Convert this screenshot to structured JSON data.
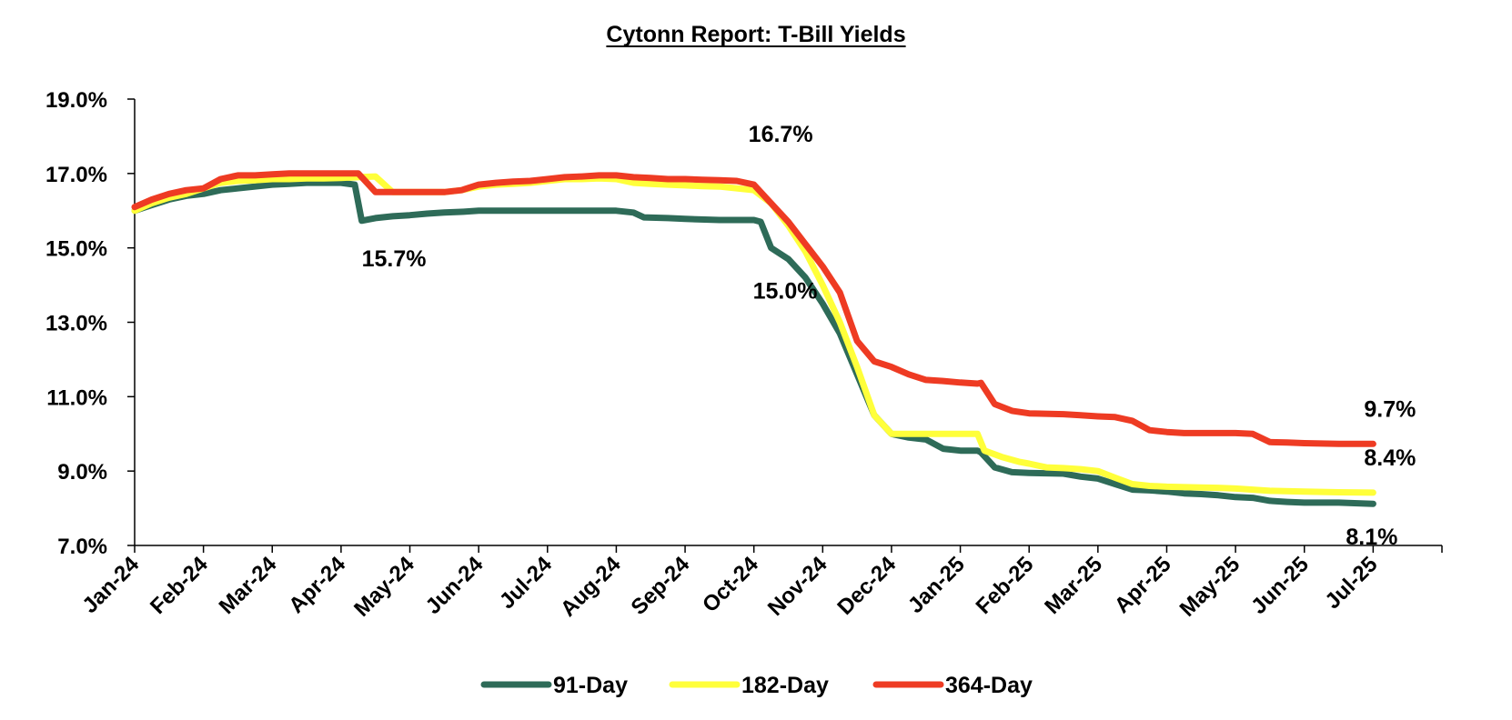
{
  "chart_data": {
    "type": "line",
    "title": "Cytonn Report: T-Bill Yields",
    "xlabel": "",
    "ylabel": "",
    "ylim": [
      7.0,
      19.0
    ],
    "y_ticks": [
      "7.0%",
      "9.0%",
      "11.0%",
      "13.0%",
      "15.0%",
      "17.0%",
      "19.0%"
    ],
    "x_range": [
      0,
      19
    ],
    "x_ticks": [
      {
        "x": 0,
        "label": "Jan-24"
      },
      {
        "x": 1,
        "label": "Feb-24"
      },
      {
        "x": 2,
        "label": "Mar-24"
      },
      {
        "x": 3,
        "label": "Apr-24"
      },
      {
        "x": 4,
        "label": "May-24"
      },
      {
        "x": 5,
        "label": "Jun-24"
      },
      {
        "x": 6,
        "label": "Jul-24"
      },
      {
        "x": 7,
        "label": "Aug-24"
      },
      {
        "x": 8,
        "label": "Sep-24"
      },
      {
        "x": 9,
        "label": "Oct-24"
      },
      {
        "x": 10,
        "label": "Nov-24"
      },
      {
        "x": 11,
        "label": "Dec-24"
      },
      {
        "x": 12,
        "label": "Jan-25"
      },
      {
        "x": 13,
        "label": "Feb-25"
      },
      {
        "x": 14,
        "label": "Mar-25"
      },
      {
        "x": 15,
        "label": "Apr-25"
      },
      {
        "x": 16,
        "label": "May-25"
      },
      {
        "x": 17,
        "label": "Jun-25"
      },
      {
        "x": 18,
        "label": "Jul-25"
      }
    ],
    "legend_position": "bottom",
    "grid": false,
    "series": [
      {
        "name": "91-Day",
        "color": "#2e6b58",
        "points": [
          [
            0,
            16.0
          ],
          [
            0.25,
            16.15
          ],
          [
            0.5,
            16.3
          ],
          [
            0.75,
            16.4
          ],
          [
            1.0,
            16.45
          ],
          [
            1.25,
            16.55
          ],
          [
            1.5,
            16.6
          ],
          [
            1.75,
            16.65
          ],
          [
            2.0,
            16.7
          ],
          [
            2.25,
            16.72
          ],
          [
            2.5,
            16.75
          ],
          [
            2.75,
            16.75
          ],
          [
            3.0,
            16.75
          ],
          [
            3.2,
            16.7
          ],
          [
            3.3,
            15.73
          ],
          [
            3.5,
            15.8
          ],
          [
            3.75,
            15.85
          ],
          [
            4.0,
            15.88
          ],
          [
            4.25,
            15.92
          ],
          [
            4.5,
            15.95
          ],
          [
            4.75,
            15.97
          ],
          [
            5.0,
            16.0
          ],
          [
            5.5,
            16.0
          ],
          [
            6.0,
            16.0
          ],
          [
            6.5,
            16.0
          ],
          [
            7.0,
            16.0
          ],
          [
            7.25,
            15.95
          ],
          [
            7.4,
            15.82
          ],
          [
            7.75,
            15.8
          ],
          [
            8.0,
            15.78
          ],
          [
            8.5,
            15.75
          ],
          [
            9.0,
            15.75
          ],
          [
            9.1,
            15.7
          ],
          [
            9.25,
            15.0
          ],
          [
            9.5,
            14.7
          ],
          [
            9.75,
            14.2
          ],
          [
            10.0,
            13.5
          ],
          [
            10.25,
            12.7
          ],
          [
            10.5,
            11.6
          ],
          [
            10.75,
            10.5
          ],
          [
            11.0,
            10.0
          ],
          [
            11.25,
            9.9
          ],
          [
            11.5,
            9.85
          ],
          [
            11.75,
            9.6
          ],
          [
            12.0,
            9.55
          ],
          [
            12.25,
            9.55
          ],
          [
            12.3,
            9.5
          ],
          [
            12.5,
            9.1
          ],
          [
            12.75,
            8.97
          ],
          [
            13.0,
            8.95
          ],
          [
            13.5,
            8.93
          ],
          [
            13.75,
            8.85
          ],
          [
            14.0,
            8.8
          ],
          [
            14.25,
            8.65
          ],
          [
            14.5,
            8.5
          ],
          [
            14.75,
            8.48
          ],
          [
            15.0,
            8.45
          ],
          [
            15.25,
            8.4
          ],
          [
            15.5,
            8.38
          ],
          [
            15.75,
            8.35
          ],
          [
            16.0,
            8.3
          ],
          [
            16.25,
            8.28
          ],
          [
            16.5,
            8.2
          ],
          [
            16.75,
            8.17
          ],
          [
            17.0,
            8.15
          ],
          [
            17.5,
            8.15
          ],
          [
            18.0,
            8.12
          ]
        ]
      },
      {
        "name": "182-Day",
        "color": "#ffff3a",
        "points": [
          [
            0,
            16.0
          ],
          [
            0.25,
            16.2
          ],
          [
            0.5,
            16.35
          ],
          [
            0.75,
            16.45
          ],
          [
            1.0,
            16.6
          ],
          [
            1.25,
            16.75
          ],
          [
            1.5,
            16.8
          ],
          [
            1.75,
            16.82
          ],
          [
            2.0,
            16.85
          ],
          [
            2.25,
            16.85
          ],
          [
            2.5,
            16.87
          ],
          [
            2.75,
            16.87
          ],
          [
            3.0,
            16.88
          ],
          [
            3.25,
            16.9
          ],
          [
            3.5,
            16.92
          ],
          [
            3.75,
            16.5
          ],
          [
            4.0,
            16.5
          ],
          [
            4.25,
            16.5
          ],
          [
            4.5,
            16.5
          ],
          [
            4.75,
            16.55
          ],
          [
            5.0,
            16.65
          ],
          [
            5.25,
            16.7
          ],
          [
            5.5,
            16.72
          ],
          [
            5.75,
            16.75
          ],
          [
            6.0,
            16.8
          ],
          [
            6.25,
            16.85
          ],
          [
            6.5,
            16.85
          ],
          [
            6.75,
            16.87
          ],
          [
            7.0,
            16.85
          ],
          [
            7.25,
            16.75
          ],
          [
            7.5,
            16.72
          ],
          [
            7.75,
            16.7
          ],
          [
            8.0,
            16.68
          ],
          [
            8.25,
            16.66
          ],
          [
            8.5,
            16.65
          ],
          [
            8.75,
            16.6
          ],
          [
            9.0,
            16.55
          ],
          [
            9.25,
            16.2
          ],
          [
            9.5,
            15.6
          ],
          [
            9.75,
            14.9
          ],
          [
            10.0,
            14.0
          ],
          [
            10.25,
            13.0
          ],
          [
            10.5,
            11.8
          ],
          [
            10.75,
            10.5
          ],
          [
            11.0,
            10.0
          ],
          [
            11.5,
            10.0
          ],
          [
            12.0,
            10.0
          ],
          [
            12.25,
            10.0
          ],
          [
            12.35,
            9.55
          ],
          [
            12.6,
            9.38
          ],
          [
            12.85,
            9.25
          ],
          [
            13.0,
            9.2
          ],
          [
            13.25,
            9.1
          ],
          [
            13.5,
            9.08
          ],
          [
            13.75,
            9.05
          ],
          [
            14.0,
            9.0
          ],
          [
            14.25,
            8.82
          ],
          [
            14.5,
            8.65
          ],
          [
            14.75,
            8.6
          ],
          [
            15.0,
            8.58
          ],
          [
            15.5,
            8.56
          ],
          [
            15.75,
            8.55
          ],
          [
            16.0,
            8.53
          ],
          [
            16.25,
            8.5
          ],
          [
            16.5,
            8.47
          ],
          [
            17.0,
            8.45
          ],
          [
            17.5,
            8.43
          ],
          [
            18.0,
            8.42
          ]
        ]
      },
      {
        "name": "364-Day",
        "color": "#ee3b23",
        "points": [
          [
            0,
            16.1
          ],
          [
            0.25,
            16.3
          ],
          [
            0.5,
            16.45
          ],
          [
            0.75,
            16.55
          ],
          [
            1.0,
            16.6
          ],
          [
            1.25,
            16.85
          ],
          [
            1.5,
            16.95
          ],
          [
            1.75,
            16.95
          ],
          [
            2.0,
            16.98
          ],
          [
            2.25,
            17.0
          ],
          [
            2.5,
            17.0
          ],
          [
            2.75,
            17.0
          ],
          [
            3.0,
            17.0
          ],
          [
            3.25,
            17.0
          ],
          [
            3.5,
            16.5
          ],
          [
            3.75,
            16.5
          ],
          [
            4.0,
            16.5
          ],
          [
            4.25,
            16.5
          ],
          [
            4.5,
            16.5
          ],
          [
            4.75,
            16.55
          ],
          [
            5.0,
            16.7
          ],
          [
            5.25,
            16.75
          ],
          [
            5.5,
            16.78
          ],
          [
            5.75,
            16.8
          ],
          [
            6.0,
            16.85
          ],
          [
            6.25,
            16.9
          ],
          [
            6.5,
            16.92
          ],
          [
            6.75,
            16.95
          ],
          [
            7.0,
            16.95
          ],
          [
            7.25,
            16.9
          ],
          [
            7.5,
            16.88
          ],
          [
            7.75,
            16.85
          ],
          [
            8.0,
            16.85
          ],
          [
            8.25,
            16.83
          ],
          [
            8.5,
            16.82
          ],
          [
            8.75,
            16.8
          ],
          [
            9.0,
            16.7
          ],
          [
            9.25,
            16.2
          ],
          [
            9.5,
            15.7
          ],
          [
            9.75,
            15.1
          ],
          [
            10.0,
            14.5
          ],
          [
            10.25,
            13.8
          ],
          [
            10.5,
            12.5
          ],
          [
            10.75,
            11.95
          ],
          [
            11.0,
            11.8
          ],
          [
            11.25,
            11.6
          ],
          [
            11.5,
            11.45
          ],
          [
            11.75,
            11.42
          ],
          [
            12.0,
            11.38
          ],
          [
            12.25,
            11.35
          ],
          [
            12.3,
            11.37
          ],
          [
            12.5,
            10.8
          ],
          [
            12.75,
            10.62
          ],
          [
            13.0,
            10.55
          ],
          [
            13.5,
            10.53
          ],
          [
            13.75,
            10.5
          ],
          [
            14.0,
            10.47
          ],
          [
            14.25,
            10.45
          ],
          [
            14.5,
            10.35
          ],
          [
            14.75,
            10.1
          ],
          [
            15.0,
            10.05
          ],
          [
            15.25,
            10.02
          ],
          [
            15.5,
            10.02
          ],
          [
            16.0,
            10.02
          ],
          [
            16.25,
            10.0
          ],
          [
            16.5,
            9.78
          ],
          [
            16.75,
            9.77
          ],
          [
            17.0,
            9.75
          ],
          [
            17.5,
            9.73
          ],
          [
            18.0,
            9.73
          ]
        ]
      }
    ],
    "annotations": [
      {
        "text": "16.7%",
        "x": 9.0,
        "y": 16.7
      },
      {
        "text": "15.7%",
        "x": 3.3,
        "y": 15.73
      },
      {
        "text": "15.0%",
        "x": 9.25,
        "y": 15.0
      },
      {
        "text": "9.7%",
        "x": 18.0,
        "y": 9.73
      },
      {
        "text": "8.4%",
        "x": 18.0,
        "y": 8.42
      },
      {
        "text": "8.1%",
        "x": 18.0,
        "y": 8.12
      }
    ]
  }
}
